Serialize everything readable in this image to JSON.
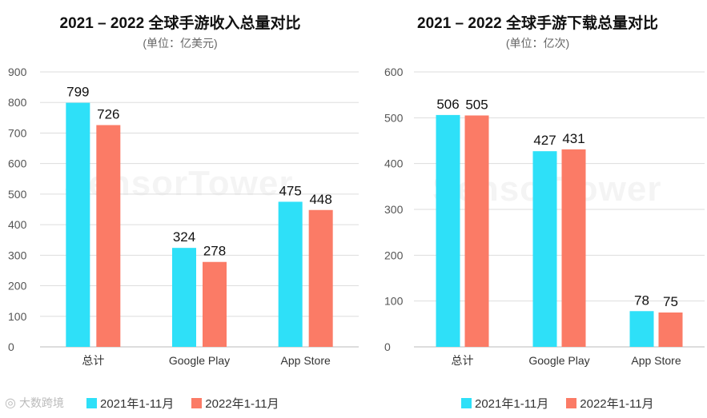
{
  "colors": {
    "series_2021": "#2ee0f8",
    "series_2022": "#fb7b66",
    "grid": "#dddddd",
    "axis": "#bbbbbb"
  },
  "watermark": "SensorTower",
  "brand": "大数跨境",
  "legend": {
    "s1": "2021年1-11月",
    "s2": "2022年1-11月"
  },
  "chart_data": [
    {
      "type": "bar",
      "title": "2021 – 2022 全球手游收入总量对比",
      "subtitle": "(单位：亿美元)",
      "categories": [
        "总计",
        "Google Play",
        "App Store"
      ],
      "series": [
        {
          "name": "2021年1-11月",
          "values": [
            799,
            324,
            475
          ]
        },
        {
          "name": "2022年1-11月",
          "values": [
            726,
            278,
            448
          ]
        }
      ],
      "ylim": [
        0,
        900
      ],
      "yticks": [
        0,
        100,
        200,
        300,
        400,
        500,
        600,
        700,
        800,
        900
      ],
      "grid": true,
      "legend": "bottom"
    },
    {
      "type": "bar",
      "title": "2021 – 2022 全球手游下载总量对比",
      "subtitle": "(单位：亿次)",
      "categories": [
        "总计",
        "Google Play",
        "App Store"
      ],
      "series": [
        {
          "name": "2021年1-11月",
          "values": [
            506,
            427,
            78
          ]
        },
        {
          "name": "2022年1-11月",
          "values": [
            505,
            431,
            75
          ]
        }
      ],
      "ylim": [
        0,
        600
      ],
      "yticks": [
        0,
        100,
        200,
        300,
        400,
        500,
        600
      ],
      "grid": true,
      "legend": "bottom"
    }
  ]
}
